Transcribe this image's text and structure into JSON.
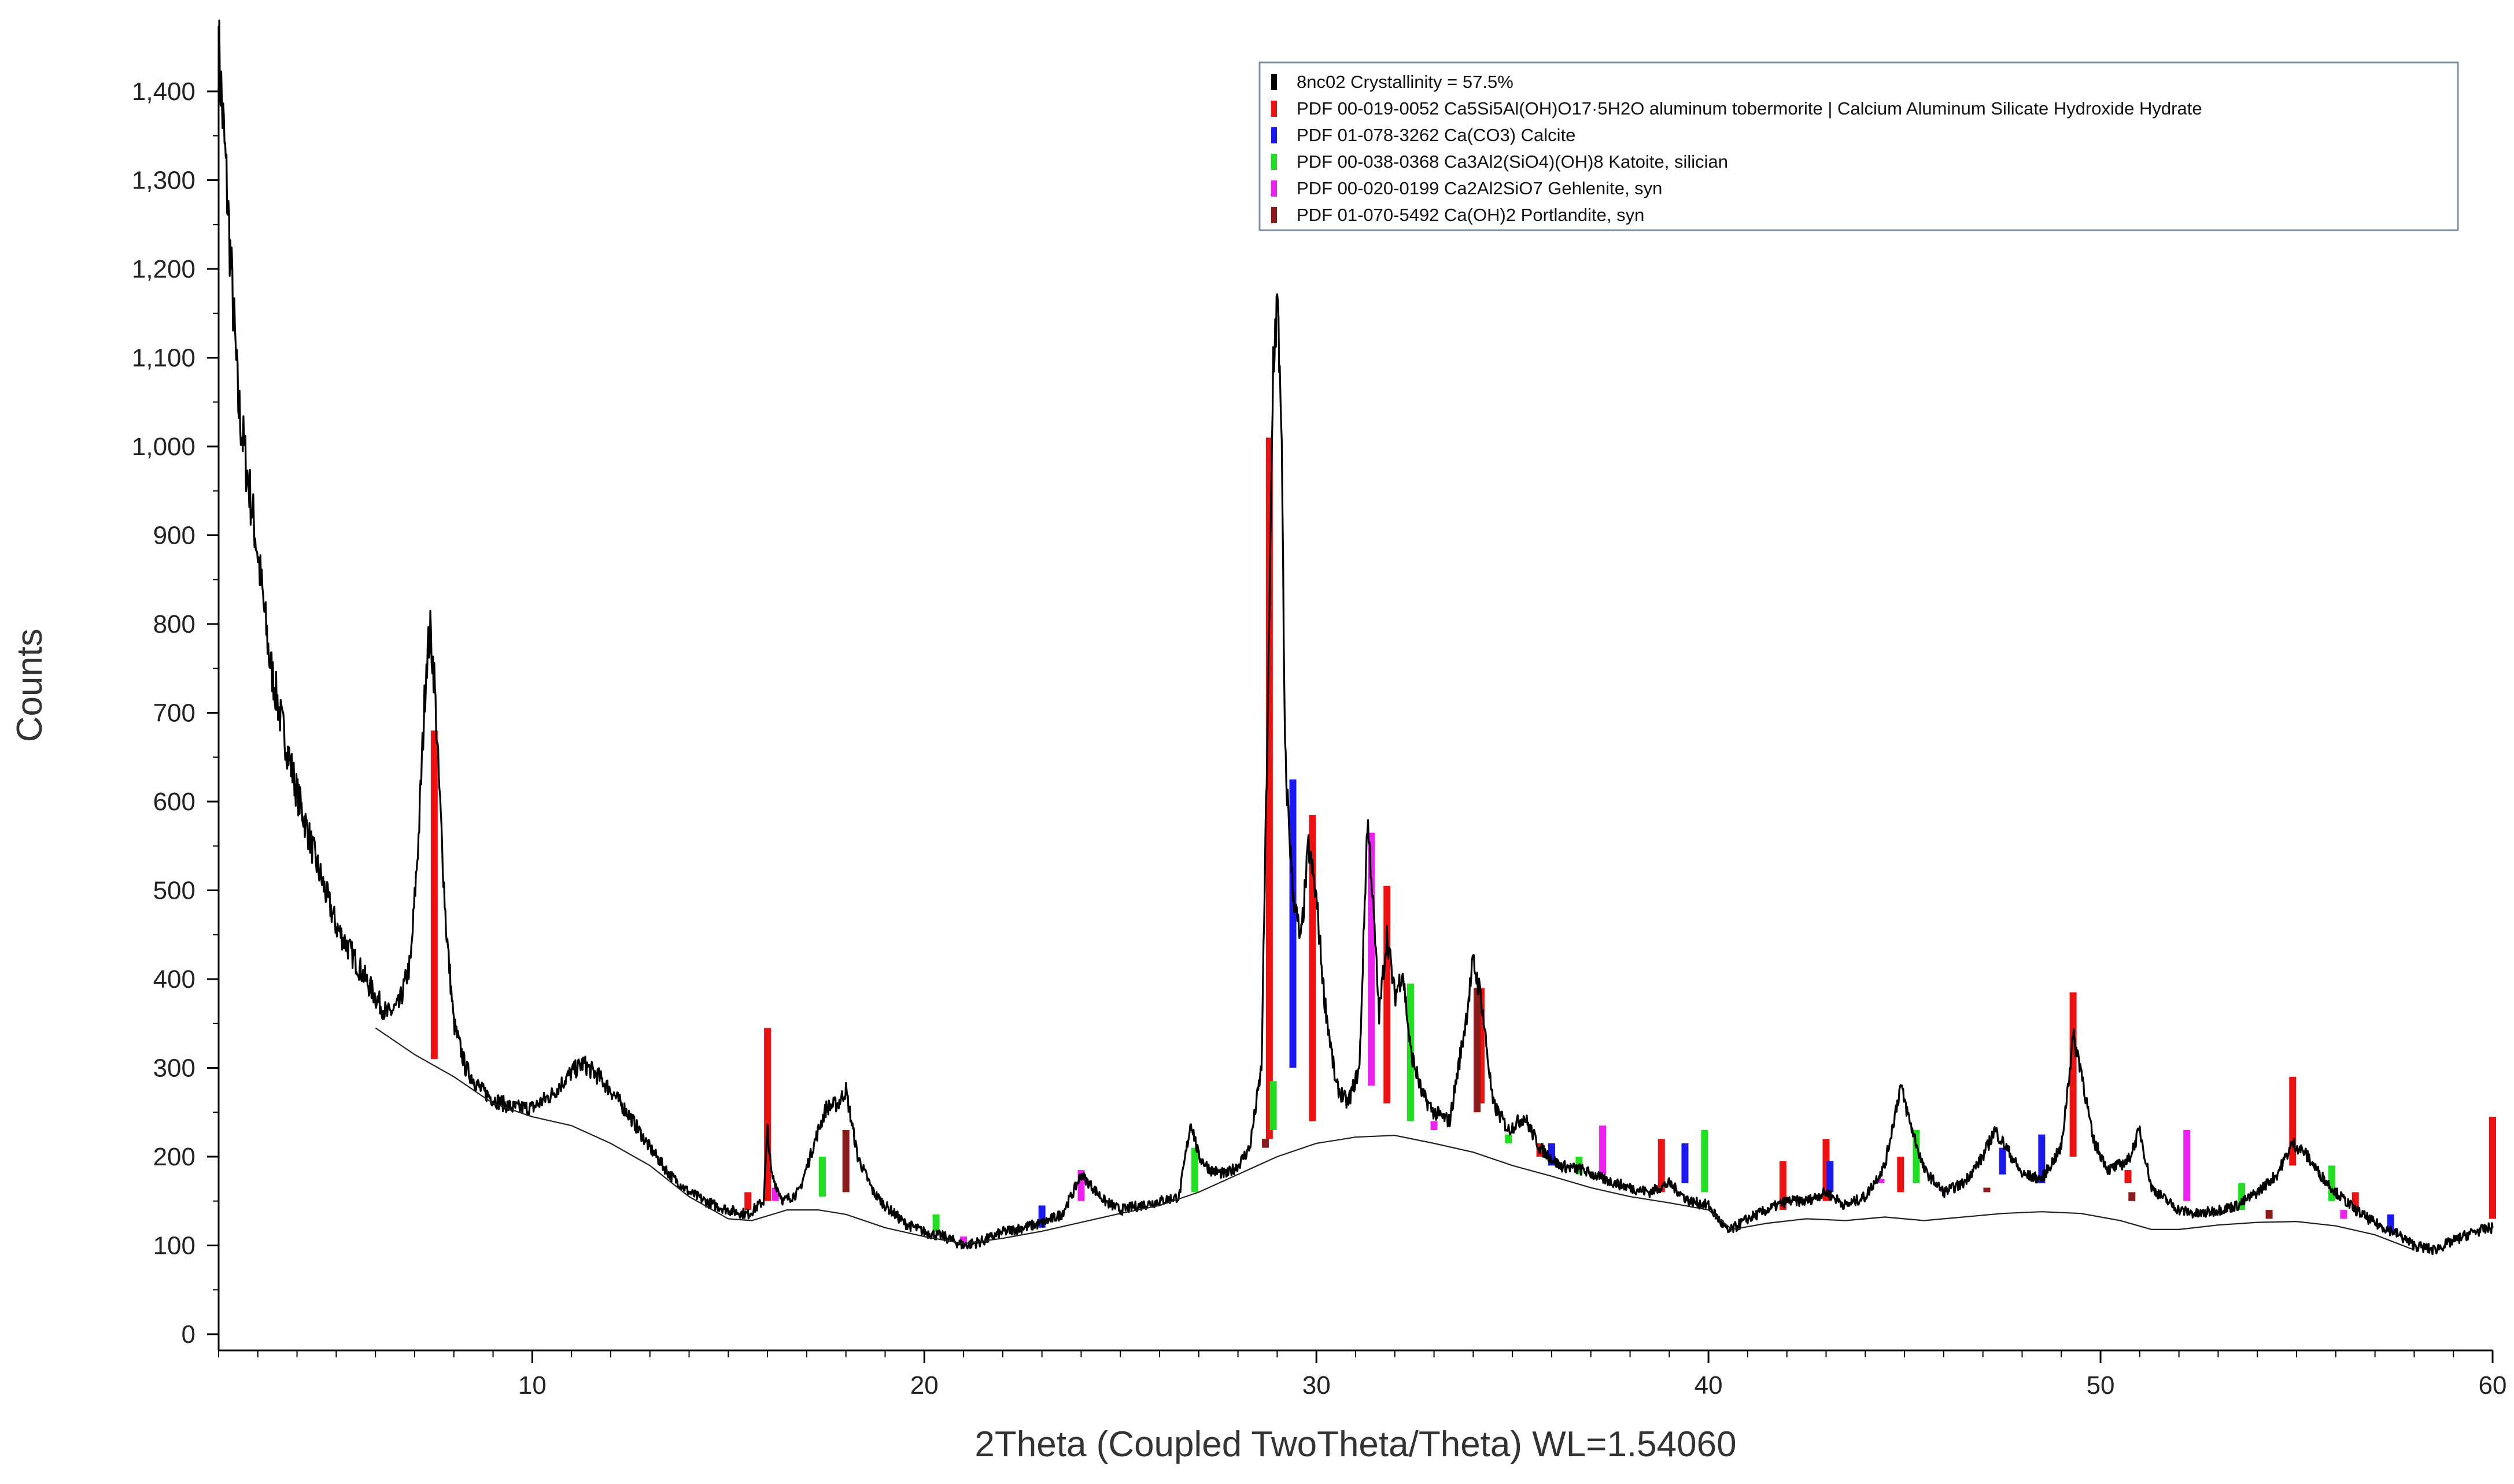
{
  "chart_data": {
    "type": "line",
    "title": "",
    "xlabel": "2Theta (Coupled TwoTheta/Theta) WL=1.54060",
    "ylabel": "Counts",
    "xlim": [
      2,
      60
    ],
    "ylim": [
      0,
      1450
    ],
    "x_ticks": [
      10,
      20,
      30,
      40,
      50,
      60
    ],
    "x_tick_labels": [
      "10",
      "20",
      "30",
      "40",
      "50",
      "60"
    ],
    "y_ticks": [
      0,
      100,
      200,
      300,
      400,
      500,
      600,
      700,
      800,
      900,
      1000,
      1100,
      1200,
      1300,
      1400
    ],
    "y_tick_labels": [
      "0",
      "100",
      "200",
      "300",
      "400",
      "500",
      "600",
      "700",
      "800",
      "900",
      "1,000",
      "1,100",
      "1,200",
      "1,300",
      "1,400"
    ],
    "legend_position": "top-right",
    "legend": [
      {
        "label": "8nc02 Crystallinity = 57.5%",
        "color": "#000000"
      },
      {
        "label": "PDF 00-019-0052 Ca5Si5Al(OH)O17·5H2O aluminum tobermorite | Calcium Aluminum Silicate Hydroxide Hydrate",
        "color": "#ee1111"
      },
      {
        "label": "PDF 01-078-3262 Ca(CO3) Calcite",
        "color": "#1a1aee"
      },
      {
        "label": "PDF 00-038-0368 Ca3Al2(SiO4)(OH)8 Katoite, silician",
        "color": "#22dd22"
      },
      {
        "label": "PDF 00-020-0199 Ca2Al2SiO7 Gehlenite, syn",
        "color": "#ee22ee"
      },
      {
        "label": "PDF 01-070-5492 Ca(OH)2 Portlandite, syn",
        "color": "#8b1a1a"
      }
    ],
    "series": [
      {
        "name": "8nc02 Crystallinity = 57.5%",
        "color": "#000000",
        "points": [
          [
            2.0,
            1450
          ],
          [
            2.2,
            1300
          ],
          [
            2.5,
            1050
          ],
          [
            2.7,
            980
          ],
          [
            3.0,
            880
          ],
          [
            3.3,
            760
          ],
          [
            3.6,
            690
          ],
          [
            4.0,
            610
          ],
          [
            4.5,
            530
          ],
          [
            5.0,
            460
          ],
          [
            5.5,
            420
          ],
          [
            6.0,
            380
          ],
          [
            6.3,
            360
          ],
          [
            6.6,
            370
          ],
          [
            6.9,
            420
          ],
          [
            7.1,
            560
          ],
          [
            7.3,
            760
          ],
          [
            7.4,
            790
          ],
          [
            7.5,
            740
          ],
          [
            7.6,
            640
          ],
          [
            7.8,
            460
          ],
          [
            8.0,
            350
          ],
          [
            8.3,
            300
          ],
          [
            8.7,
            275
          ],
          [
            9.0,
            265
          ],
          [
            9.5,
            255
          ],
          [
            10.0,
            255
          ],
          [
            10.5,
            270
          ],
          [
            11.0,
            295
          ],
          [
            11.3,
            305
          ],
          [
            11.7,
            290
          ],
          [
            12.0,
            275
          ],
          [
            12.5,
            245
          ],
          [
            13.0,
            210
          ],
          [
            13.5,
            180
          ],
          [
            14.0,
            160
          ],
          [
            14.5,
            148
          ],
          [
            15.0,
            140
          ],
          [
            15.5,
            135
          ],
          [
            15.9,
            150
          ],
          [
            16.0,
            230
          ],
          [
            16.1,
            180
          ],
          [
            16.4,
            150
          ],
          [
            16.8,
            160
          ],
          [
            17.3,
            230
          ],
          [
            17.5,
            255
          ],
          [
            17.8,
            260
          ],
          [
            18.0,
            275
          ],
          [
            18.3,
            200
          ],
          [
            18.7,
            160
          ],
          [
            19.0,
            145
          ],
          [
            19.5,
            125
          ],
          [
            20.0,
            115
          ],
          [
            20.5,
            110
          ],
          [
            21.0,
            100
          ],
          [
            21.5,
            105
          ],
          [
            22.0,
            115
          ],
          [
            22.5,
            120
          ],
          [
            23.0,
            125
          ],
          [
            23.5,
            135
          ],
          [
            23.8,
            160
          ],
          [
            24.0,
            180
          ],
          [
            24.3,
            165
          ],
          [
            24.6,
            150
          ],
          [
            25.0,
            140
          ],
          [
            25.5,
            145
          ],
          [
            26.0,
            150
          ],
          [
            26.5,
            155
          ],
          [
            26.8,
            240
          ],
          [
            27.0,
            200
          ],
          [
            27.3,
            185
          ],
          [
            27.7,
            180
          ],
          [
            28.0,
            190
          ],
          [
            28.3,
            210
          ],
          [
            28.6,
            300
          ],
          [
            28.8,
            800
          ],
          [
            28.9,
            1100
          ],
          [
            29.0,
            1160
          ],
          [
            29.1,
            1050
          ],
          [
            29.2,
            650
          ],
          [
            29.4,
            500
          ],
          [
            29.6,
            440
          ],
          [
            29.8,
            550
          ],
          [
            30.0,
            490
          ],
          [
            30.2,
            380
          ],
          [
            30.5,
            280
          ],
          [
            30.8,
            260
          ],
          [
            31.1,
            300
          ],
          [
            31.3,
            580
          ],
          [
            31.4,
            520
          ],
          [
            31.6,
            360
          ],
          [
            31.8,
            450
          ],
          [
            32.0,
            380
          ],
          [
            32.2,
            410
          ],
          [
            32.4,
            320
          ],
          [
            32.7,
            270
          ],
          [
            33.0,
            250
          ],
          [
            33.4,
            240
          ],
          [
            33.8,
            350
          ],
          [
            34.0,
            420
          ],
          [
            34.2,
            380
          ],
          [
            34.5,
            260
          ],
          [
            34.9,
            230
          ],
          [
            35.3,
            245
          ],
          [
            35.7,
            210
          ],
          [
            36.2,
            190
          ],
          [
            36.8,
            185
          ],
          [
            37.3,
            175
          ],
          [
            38.0,
            165
          ],
          [
            38.5,
            160
          ],
          [
            39.0,
            170
          ],
          [
            39.5,
            150
          ],
          [
            40.0,
            145
          ],
          [
            40.5,
            115
          ],
          [
            41.0,
            130
          ],
          [
            41.5,
            140
          ],
          [
            42.0,
            150
          ],
          [
            42.5,
            150
          ],
          [
            43.0,
            160
          ],
          [
            43.5,
            145
          ],
          [
            44.0,
            155
          ],
          [
            44.5,
            190
          ],
          [
            44.9,
            280
          ],
          [
            45.1,
            245
          ],
          [
            45.5,
            185
          ],
          [
            46.0,
            160
          ],
          [
            46.5,
            170
          ],
          [
            47.0,
            200
          ],
          [
            47.3,
            230
          ],
          [
            47.6,
            210
          ],
          [
            48.0,
            180
          ],
          [
            48.5,
            175
          ],
          [
            49.0,
            210
          ],
          [
            49.3,
            335
          ],
          [
            49.5,
            300
          ],
          [
            49.8,
            220
          ],
          [
            50.2,
            185
          ],
          [
            50.7,
            195
          ],
          [
            51.0,
            230
          ],
          [
            51.3,
            165
          ],
          [
            51.7,
            150
          ],
          [
            52.0,
            140
          ],
          [
            52.5,
            135
          ],
          [
            53.0,
            140
          ],
          [
            53.5,
            145
          ],
          [
            54.0,
            160
          ],
          [
            54.5,
            180
          ],
          [
            54.9,
            215
          ],
          [
            55.2,
            205
          ],
          [
            55.6,
            180
          ],
          [
            56.0,
            160
          ],
          [
            56.5,
            140
          ],
          [
            57.0,
            125
          ],
          [
            57.5,
            115
          ],
          [
            58.0,
            100
          ],
          [
            58.5,
            95
          ],
          [
            59.0,
            105
          ],
          [
            59.5,
            115
          ],
          [
            60.0,
            120
          ]
        ]
      },
      {
        "name": "background",
        "color": "#222222",
        "points": [
          [
            6.0,
            345
          ],
          [
            7.0,
            315
          ],
          [
            8.0,
            290
          ],
          [
            9.0,
            260
          ],
          [
            10.0,
            245
          ],
          [
            11.0,
            235
          ],
          [
            12.0,
            215
          ],
          [
            13.0,
            190
          ],
          [
            14.0,
            155
          ],
          [
            15.0,
            130
          ],
          [
            15.6,
            128
          ],
          [
            16.5,
            140
          ],
          [
            17.3,
            140
          ],
          [
            18.0,
            135
          ],
          [
            19.0,
            120
          ],
          [
            20.0,
            110
          ],
          [
            21.0,
            102
          ],
          [
            22.0,
            108
          ],
          [
            23.0,
            116
          ],
          [
            24.0,
            126
          ],
          [
            25.0,
            136
          ],
          [
            26.0,
            145
          ],
          [
            27.0,
            160
          ],
          [
            28.0,
            180
          ],
          [
            29.0,
            200
          ],
          [
            30.0,
            215
          ],
          [
            31.0,
            222
          ],
          [
            32.0,
            224
          ],
          [
            33.0,
            215
          ],
          [
            34.0,
            205
          ],
          [
            35.0,
            190
          ],
          [
            36.0,
            178
          ],
          [
            37.0,
            165
          ],
          [
            38.0,
            155
          ],
          [
            39.0,
            148
          ],
          [
            40.0,
            140
          ],
          [
            40.6,
            118
          ],
          [
            41.5,
            125
          ],
          [
            42.5,
            130
          ],
          [
            43.5,
            128
          ],
          [
            44.5,
            132
          ],
          [
            45.5,
            128
          ],
          [
            46.5,
            132
          ],
          [
            47.5,
            136
          ],
          [
            48.5,
            138
          ],
          [
            49.5,
            136
          ],
          [
            50.5,
            128
          ],
          [
            51.3,
            118
          ],
          [
            52.0,
            118
          ],
          [
            53.0,
            123
          ],
          [
            54.0,
            126
          ],
          [
            55.0,
            127
          ],
          [
            56.0,
            122
          ],
          [
            57.0,
            112
          ],
          [
            58.0,
            95
          ]
        ]
      }
    ],
    "reference_sticks": [
      {
        "name": "PDF 00-019-0052 Ca5Si5Al(OH)O17·5H2O aluminum tobermorite | Calcium Aluminum Silicate Hydroxide Hydrate",
        "color": "#ee1111",
        "peaks": [
          [
            7.5,
            310,
            680
          ],
          [
            15.5,
            140,
            160
          ],
          [
            16.0,
            150,
            345
          ],
          [
            28.8,
            220,
            1010
          ],
          [
            29.9,
            240,
            585
          ],
          [
            31.8,
            260,
            505
          ],
          [
            34.2,
            260,
            390
          ],
          [
            35.7,
            200,
            215
          ],
          [
            38.8,
            160,
            220
          ],
          [
            41.9,
            140,
            195
          ],
          [
            43.0,
            150,
            220
          ],
          [
            44.9,
            160,
            200
          ],
          [
            49.3,
            200,
            385
          ],
          [
            50.7,
            170,
            185
          ],
          [
            54.9,
            190,
            290
          ],
          [
            56.5,
            140,
            160
          ],
          [
            60.0,
            130,
            245
          ]
        ]
      },
      {
        "name": "PDF 01-078-3262 Ca(CO3) Calcite",
        "color": "#1a1aee",
        "peaks": [
          [
            23.0,
            120,
            145
          ],
          [
            29.4,
            300,
            625
          ],
          [
            36.0,
            190,
            215
          ],
          [
            39.4,
            170,
            215
          ],
          [
            43.1,
            160,
            195
          ],
          [
            47.1,
            165,
            165
          ],
          [
            47.5,
            180,
            210
          ],
          [
            48.5,
            170,
            225
          ],
          [
            57.4,
            115,
            135
          ]
        ]
      },
      {
        "name": "PDF 00-038-0368 Ca3Al2(SiO4)(OH)8 Katoite, silician",
        "color": "#22dd22",
        "peaks": [
          [
            17.4,
            155,
            200
          ],
          [
            20.3,
            115,
            135
          ],
          [
            26.9,
            160,
            210
          ],
          [
            28.9,
            230,
            285
          ],
          [
            32.4,
            240,
            395
          ],
          [
            34.9,
            215,
            225
          ],
          [
            36.7,
            180,
            200
          ],
          [
            39.9,
            160,
            230
          ],
          [
            45.3,
            170,
            230
          ],
          [
            53.6,
            140,
            170
          ],
          [
            55.9,
            150,
            190
          ]
        ]
      },
      {
        "name": "PDF 00-020-0199 Ca2Al2SiO7 Gehlenite, syn",
        "color": "#ee22ee",
        "peaks": [
          [
            16.2,
            150,
            165
          ],
          [
            21.0,
            100,
            110
          ],
          [
            24.0,
            150,
            185
          ],
          [
            31.4,
            280,
            565
          ],
          [
            33.0,
            230,
            240
          ],
          [
            37.3,
            180,
            235
          ],
          [
            44.4,
            170,
            175
          ],
          [
            46.0,
            160,
            165
          ],
          [
            52.2,
            150,
            230
          ],
          [
            56.2,
            130,
            140
          ]
        ]
      },
      {
        "name": "PDF 01-070-5492 Ca(OH)2 Portlandite, syn",
        "color": "#8b1a1a",
        "peaks": [
          [
            18.0,
            160,
            230
          ],
          [
            28.7,
            210,
            220
          ],
          [
            34.1,
            250,
            390
          ],
          [
            47.1,
            160,
            165
          ],
          [
            50.8,
            150,
            160
          ],
          [
            54.3,
            130,
            140
          ]
        ]
      }
    ]
  }
}
